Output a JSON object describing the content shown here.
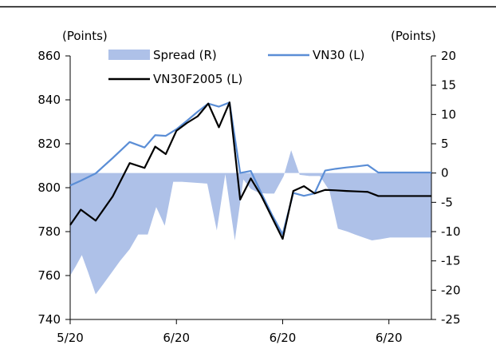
{
  "chart_data": {
    "type": "line",
    "left_axis_unit": "(Points)",
    "right_axis_unit": "(Points)",
    "y_left": {
      "lim": [
        740,
        860
      ],
      "ticks": [
        740,
        760,
        780,
        800,
        820,
        840,
        860
      ]
    },
    "y_right": {
      "lim": [
        -25,
        20
      ],
      "ticks": [
        -25,
        -20,
        -15,
        -10,
        -5,
        0,
        5,
        10,
        15,
        20
      ]
    },
    "x_tick_labels": [
      "5/20",
      "6/20",
      "6/20",
      "6/20"
    ],
    "x_tick_positions": [
      0,
      5,
      10,
      15
    ],
    "x_range": [
      0,
      17
    ],
    "legend": {
      "placement": "top",
      "items": [
        "Spread (R)",
        "VN30 (L)",
        "VN30F2005 (L)"
      ]
    },
    "series": [
      {
        "name": "Spread (R)",
        "axis": "right",
        "kind": "area",
        "color": "#aec1e8",
        "x": [
          0,
          0.25,
          0.55,
          0.85,
          1.2,
          1.55,
          1.95,
          2.35,
          2.8,
          3.2,
          3.65,
          4.05,
          4.45,
          4.85,
          5.25,
          5.65,
          6.05,
          6.45,
          6.9,
          7.3,
          7.75,
          8.15,
          8.5,
          8.9,
          9.25,
          9.6,
          10.05,
          10.4,
          10.8,
          11.25,
          11.75,
          12.2,
          12.6,
          13.05,
          13.4,
          13.8,
          14.2,
          14.6,
          15.05,
          15.5,
          15.9,
          16.3,
          16.7,
          17
        ],
        "y": [
          -17.5,
          -16,
          -14,
          -17,
          -20.7,
          -19,
          -17,
          -15,
          -13,
          -10.5,
          -10.5,
          -5.8,
          -9,
          -1.5,
          -1.5,
          -1.6,
          -1.7,
          -1.8,
          -9.8,
          -0.2,
          -11.5,
          -1.1,
          -2.7,
          -3.4,
          -3.5,
          -3.5,
          -0.5,
          3.9,
          -0.3,
          -0.5,
          -0.5,
          -3,
          -9.5,
          -10,
          -10.5,
          -11,
          -11.5,
          -11.3,
          -11,
          -11,
          -11,
          -11,
          -11,
          -11
        ]
      },
      {
        "name": "VN30 (L)",
        "axis": "left",
        "kind": "line",
        "color": "#5b8ed6",
        "x": [
          0,
          0.5,
          1.2,
          2.0,
          2.8,
          3.5,
          4.0,
          4.5,
          5.0,
          5.5,
          6.0,
          6.5,
          7.0,
          7.5,
          8.0,
          8.5,
          9.0,
          9.5,
          10.0,
          10.5,
          11.0,
          11.5,
          12.0,
          12.5,
          13.0,
          13.5,
          14.0,
          14.5,
          15.0,
          15.5,
          16.0,
          16.5,
          17.0
        ],
        "y": [
          801,
          803.2,
          806.5,
          813.5,
          820.8,
          818.3,
          823.9,
          823.6,
          826.6,
          830.5,
          834.6,
          838.3,
          836.9,
          838.8,
          806.7,
          807.6,
          797.4,
          787.6,
          778.7,
          797.6,
          796.3,
          797.4,
          807.8,
          808.6,
          809.2,
          809.7,
          810.3,
          806.9,
          806.9,
          806.9,
          806.9,
          806.9,
          806.9
        ]
      },
      {
        "name": "VN30F2005 (L)",
        "axis": "left",
        "kind": "line",
        "color": "#000000",
        "x": [
          0,
          0.5,
          1.2,
          2.0,
          2.8,
          3.5,
          4.0,
          4.5,
          5.0,
          5.5,
          6.0,
          6.5,
          7.0,
          7.5,
          8.0,
          8.5,
          9.0,
          9.5,
          10.0,
          10.5,
          11.0,
          11.5,
          12.0,
          12.5,
          13.0,
          13.5,
          14.0,
          14.5,
          15.0,
          15.5,
          16.0,
          16.5,
          17.0
        ],
        "y": [
          783,
          790,
          785,
          796,
          811.2,
          809,
          818.7,
          815.3,
          825.9,
          829.5,
          832.5,
          838.3,
          827.5,
          838.8,
          794.6,
          804.2,
          796.2,
          786.4,
          776.7,
          798.5,
          800.7,
          797.4,
          799,
          798.8,
          798.5,
          798.3,
          798.1,
          796.2,
          796.2,
          796.2,
          796.2,
          796.2,
          796.2
        ]
      }
    ]
  }
}
